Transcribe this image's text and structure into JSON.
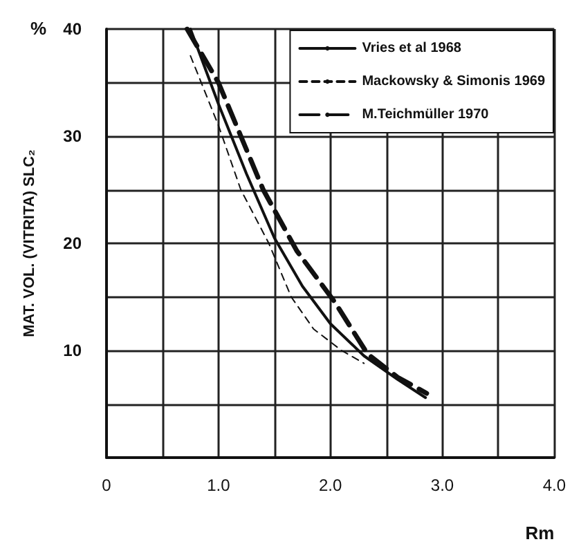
{
  "chart_data": {
    "type": "line",
    "xlabel": "Rm",
    "ylabel": "MAT. VOL. (VITRITA) SLC₂",
    "annotations": [
      "%"
    ],
    "xlim": [
      0,
      4
    ],
    "ylim": [
      0,
      40
    ],
    "xticks": [
      0,
      {
        "value": 0.5,
        "label": null
      },
      {
        "value": 1,
        "label": "1.0"
      },
      {
        "value": 1.5,
        "label": null
      },
      {
        "value": 2,
        "label": "2.0"
      },
      {
        "value": 2.5,
        "label": null
      },
      {
        "value": 3,
        "label": "3.0"
      },
      {
        "value": 3.5,
        "label": null
      },
      {
        "value": 4,
        "label": "4.0"
      }
    ],
    "yticks": [
      {
        "value": 0,
        "label": null
      },
      {
        "value": 5,
        "label": null
      },
      10,
      {
        "value": 15,
        "label": null
      },
      20,
      {
        "value": 25,
        "label": null
      },
      30,
      {
        "value": 35,
        "label": null
      },
      40
    ],
    "grid": true,
    "legend": "top right",
    "marker": "none",
    "series": [
      {
        "name": "Vries et al 1968",
        "color": "#111111",
        "line_style": "solid",
        "x": [
          0.75,
          1.0,
          1.25,
          1.5,
          1.75,
          2.0,
          2.3,
          2.6,
          2.85
        ],
        "values": [
          40,
          33,
          26.5,
          20.5,
          16,
          12.5,
          9.5,
          7.3,
          5.6
        ]
      },
      {
        "name": "Mackowsky & Simonis 1969",
        "color": "#111111",
        "line_style": "dashed",
        "x": [
          0.75,
          1.0,
          1.2,
          1.45,
          1.65,
          1.85,
          2.1,
          2.3
        ],
        "values": [
          37.5,
          31,
          25,
          20,
          15,
          12,
          10,
          8.8
        ]
      },
      {
        "name": "M.Teichmüller 1970",
        "color": "#111111",
        "line_style": "dashed",
        "x": [
          0.72,
          1.0,
          1.2,
          1.4,
          1.7,
          2.04,
          2.33,
          2.6,
          2.86
        ],
        "values": [
          40,
          35,
          30,
          25,
          19.3,
          14.5,
          9.7,
          7.5,
          6.0
        ]
      }
    ]
  }
}
